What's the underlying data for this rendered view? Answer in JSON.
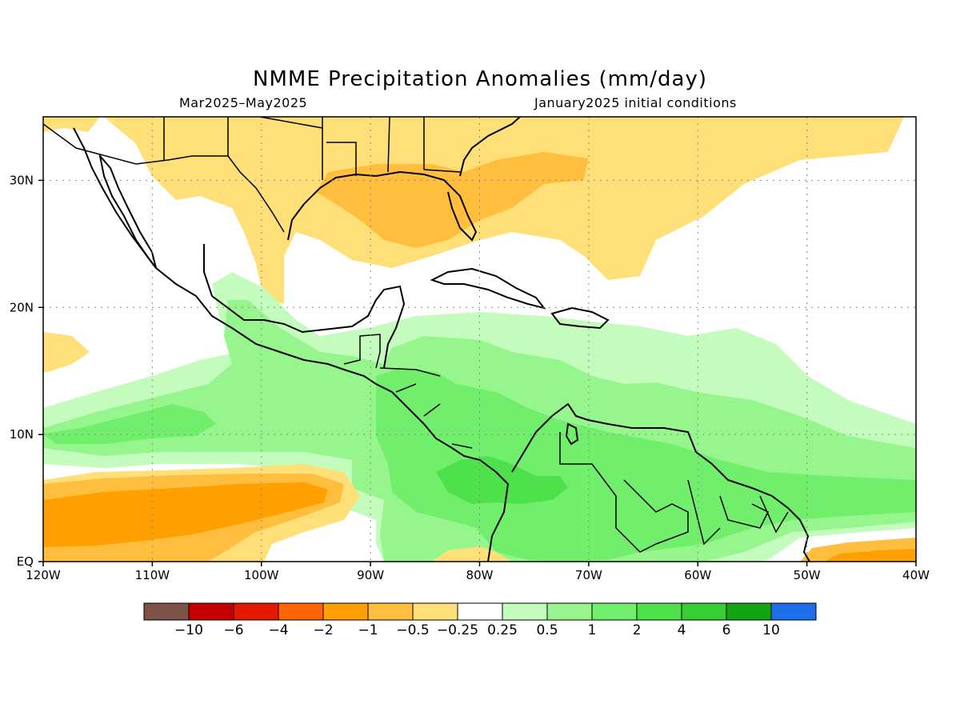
{
  "title": "NMME Precipitation Anomalies (mm/day)",
  "subtitle_left": "Mar2025–May2025",
  "subtitle_right": "January2025 initial conditions",
  "map": {
    "lon_range": [
      -120,
      -40
    ],
    "lat_range": [
      0,
      35
    ],
    "x_ticks": [
      {
        "value": -120,
        "label": "120W"
      },
      {
        "value": -110,
        "label": "110W"
      },
      {
        "value": -100,
        "label": "100W"
      },
      {
        "value": -90,
        "label": "90W"
      },
      {
        "value": -80,
        "label": "80W"
      },
      {
        "value": -70,
        "label": "70W"
      },
      {
        "value": -60,
        "label": "60W"
      },
      {
        "value": -50,
        "label": "50W"
      },
      {
        "value": -40,
        "label": "40W"
      }
    ],
    "y_ticks": [
      {
        "value": 0,
        "label": "EQ"
      },
      {
        "value": 10,
        "label": "10N"
      },
      {
        "value": 20,
        "label": "20N"
      },
      {
        "value": 30,
        "label": "30N"
      }
    ],
    "grid": "dotted"
  },
  "colorbar": {
    "colors": [
      "#7f5247",
      "#c60000",
      "#e21b00",
      "#ff6400",
      "#ff9f00",
      "#ffbe3d",
      "#ffe078",
      "#ffffff",
      "#c3fcbd",
      "#96f58c",
      "#72ee6d",
      "#4fe14c",
      "#36ce33",
      "#12a511",
      "#1e6eeb"
    ],
    "labels": [
      "−10",
      "−6",
      "−4",
      "−2",
      "−1",
      "−0.5",
      "−0.25",
      "0.25",
      "0.5",
      "1",
      "2",
      "4",
      "6",
      "10"
    ]
  }
}
